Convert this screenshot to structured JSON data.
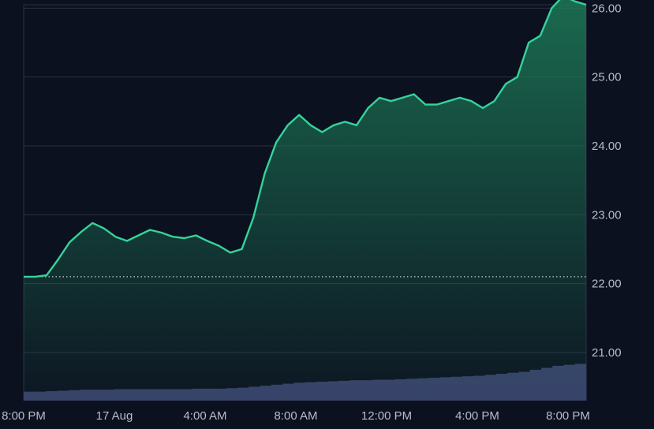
{
  "theme": {
    "background": "#0c1120",
    "grid": "#2a3142",
    "line_up": "#35d39a",
    "line_down": "#f05561",
    "area_top": "#1d7a57",
    "volume": "#39406a",
    "baseline": "#c9ced8"
  },
  "chart_data": {
    "type": "area",
    "y_axis_position": "right",
    "ylim": [
      20.3,
      26.05
    ],
    "yticks": [
      21.0,
      22.0,
      23.0,
      24.0,
      25.0,
      26.0
    ],
    "ytick_labels": [
      "21.00",
      "22.00",
      "23.00",
      "24.00",
      "25.00",
      "26.00"
    ],
    "baseline_value": 22.1,
    "xlim_hours": [
      0,
      24.8
    ],
    "xticks_hours": [
      0,
      4,
      8,
      12,
      16,
      20,
      24
    ],
    "xtick_labels": [
      "8:00 PM",
      "17 Aug",
      "4:00 AM",
      "8:00 AM",
      "12:00 PM",
      "4:00 PM",
      "8:00 PM"
    ],
    "grid": true,
    "series": [
      {
        "values_per_hour": [
          22.1,
          22.1,
          22.12,
          22.35,
          22.6,
          22.75,
          22.88,
          22.8,
          22.68,
          22.62,
          22.7,
          22.78,
          22.74,
          22.68,
          22.66,
          22.7,
          22.62,
          22.55,
          22.45,
          22.5,
          22.95,
          23.6,
          24.05,
          24.3,
          24.45,
          24.3,
          24.2,
          24.3,
          24.35,
          24.3,
          24.55,
          24.7,
          24.65,
          24.7,
          24.75,
          24.6,
          24.6,
          24.65,
          24.7,
          24.65,
          24.55,
          24.65,
          24.9,
          25.0,
          25.5,
          25.6,
          26.0,
          26.18,
          26.1,
          26.05
        ]
      }
    ],
    "volume": {
      "values": [
        0.18,
        0.18,
        0.19,
        0.2,
        0.21,
        0.22,
        0.22,
        0.22,
        0.23,
        0.23,
        0.23,
        0.23,
        0.23,
        0.23,
        0.23,
        0.24,
        0.24,
        0.24,
        0.25,
        0.26,
        0.28,
        0.3,
        0.32,
        0.34,
        0.36,
        0.37,
        0.38,
        0.39,
        0.4,
        0.41,
        0.41,
        0.42,
        0.42,
        0.43,
        0.44,
        0.45,
        0.46,
        0.47,
        0.48,
        0.49,
        0.5,
        0.52,
        0.54,
        0.56,
        0.58,
        0.62,
        0.66,
        0.7,
        0.72,
        0.74
      ],
      "max": 1.0
    }
  }
}
